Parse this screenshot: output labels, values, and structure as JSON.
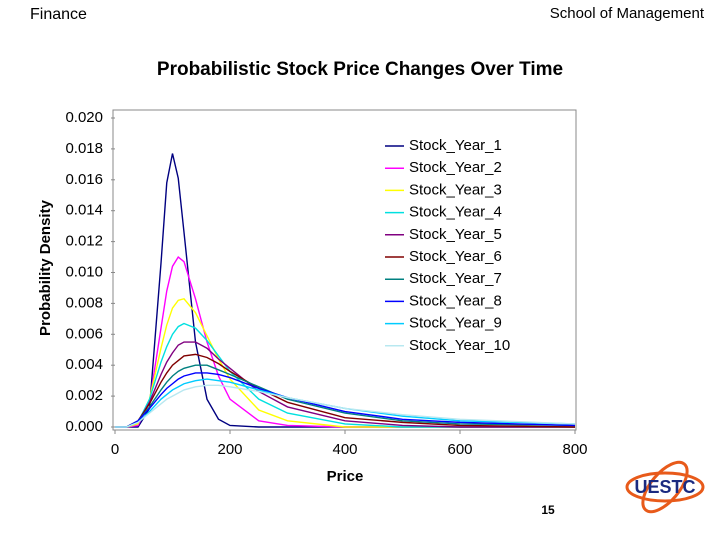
{
  "header": {
    "left": "Finance",
    "right": "School of Management"
  },
  "footer": {
    "page_number": "15",
    "logo_text": "UESTC"
  },
  "chart_data": {
    "type": "line",
    "title": "Probabilistic Stock Price Changes Over Time",
    "xlabel": "Price",
    "ylabel": "Probability Density",
    "x": [
      0,
      20,
      40,
      60,
      80,
      90,
      100,
      110,
      120,
      140,
      160,
      180,
      200,
      250,
      300,
      400,
      500,
      600,
      800
    ],
    "xlim": [
      0,
      800
    ],
    "xticks": [
      0,
      200,
      400,
      600,
      800
    ],
    "ylim": [
      0,
      0.02
    ],
    "yticks": [
      {
        "value": 0,
        "label": "0.000"
      },
      {
        "value": 0.002,
        "label": "0.002"
      },
      {
        "value": 0.004,
        "label": "0.004"
      },
      {
        "value": 0.006,
        "label": "0.006"
      },
      {
        "value": 0.008,
        "label": "0.008"
      },
      {
        "value": 0.01,
        "label": "0.010"
      },
      {
        "value": 0.012,
        "label": "0.012"
      },
      {
        "value": 0.014,
        "label": "0.014"
      },
      {
        "value": 0.016,
        "label": "0.016"
      },
      {
        "value": 0.018,
        "label": "0.018"
      },
      {
        "value": 0.02,
        "label": "0.020"
      }
    ],
    "legend": "upper right",
    "series": [
      {
        "name": "Stock_Year_1",
        "color": "#000080",
        "values": [
          0,
          0,
          0,
          0.0012,
          0.0106,
          0.0158,
          0.0177,
          0.0161,
          0.0126,
          0.0055,
          0.0018,
          0.0005,
          0.0001,
          0,
          0,
          0,
          0,
          0,
          0
        ]
      },
      {
        "name": "Stock_Year_2",
        "color": "#ff00ff",
        "values": [
          0,
          0,
          0.0001,
          0.0016,
          0.0064,
          0.0088,
          0.0104,
          0.011,
          0.0107,
          0.0083,
          0.0055,
          0.0033,
          0.0018,
          0.0004,
          0.0001,
          0,
          0,
          0,
          0
        ]
      },
      {
        "name": "Stock_Year_3",
        "color": "#ffff00",
        "values": [
          0,
          0,
          0.0002,
          0.0018,
          0.0051,
          0.0066,
          0.0077,
          0.0082,
          0.0083,
          0.0074,
          0.0059,
          0.0044,
          0.0031,
          0.0011,
          0.0004,
          0,
          0,
          0,
          0
        ]
      },
      {
        "name": "Stock_Year_4",
        "color": "#00e0e0",
        "values": [
          0,
          0,
          0.0003,
          0.0018,
          0.0042,
          0.0052,
          0.006,
          0.0065,
          0.0067,
          0.0064,
          0.0056,
          0.0046,
          0.0036,
          0.0018,
          0.0009,
          0.0002,
          0,
          0,
          0
        ]
      },
      {
        "name": "Stock_Year_5",
        "color": "#800080",
        "values": [
          0,
          0,
          0.0003,
          0.0016,
          0.0034,
          0.0042,
          0.0048,
          0.0053,
          0.0055,
          0.0055,
          0.0051,
          0.0044,
          0.0038,
          0.0023,
          0.0013,
          0.0004,
          0.0001,
          0,
          0
        ]
      },
      {
        "name": "Stock_Year_6",
        "color": "#800000",
        "values": [
          0,
          0,
          0.0004,
          0.0015,
          0.0029,
          0.0035,
          0.004,
          0.0043,
          0.0046,
          0.0047,
          0.0045,
          0.0041,
          0.0036,
          0.0025,
          0.0016,
          0.0006,
          0.0003,
          0.0001,
          0
        ]
      },
      {
        "name": "Stock_Year_7",
        "color": "#008080",
        "values": [
          0,
          0,
          0.0004,
          0.0013,
          0.0024,
          0.0029,
          0.0033,
          0.0036,
          0.0038,
          0.004,
          0.004,
          0.0037,
          0.0034,
          0.0026,
          0.0018,
          0.0009,
          0.0004,
          0.0002,
          0.0001
        ]
      },
      {
        "name": "Stock_Year_8",
        "color": "#0000ff",
        "values": [
          0,
          0,
          0.0004,
          0.0012,
          0.0021,
          0.0025,
          0.0028,
          0.0031,
          0.0033,
          0.0035,
          0.0035,
          0.0034,
          0.0032,
          0.0025,
          0.0019,
          0.001,
          0.0005,
          0.0003,
          0.0001
        ]
      },
      {
        "name": "Stock_Year_9",
        "color": "#00ccff",
        "values": [
          0,
          0,
          0.0003,
          0.001,
          0.0018,
          0.0021,
          0.0024,
          0.0026,
          0.0028,
          0.003,
          0.0031,
          0.003,
          0.0029,
          0.0024,
          0.0019,
          0.0012,
          0.0007,
          0.0004,
          0.0002
        ]
      },
      {
        "name": "Stock_Year_10",
        "color": "#b8e8f0",
        "values": [
          0,
          0,
          0.0003,
          0.0009,
          0.0015,
          0.0018,
          0.002,
          0.0022,
          0.0024,
          0.0026,
          0.0027,
          0.0027,
          0.0026,
          0.0023,
          0.0019,
          0.0012,
          0.0008,
          0.0005,
          0.0002
        ]
      }
    ]
  }
}
